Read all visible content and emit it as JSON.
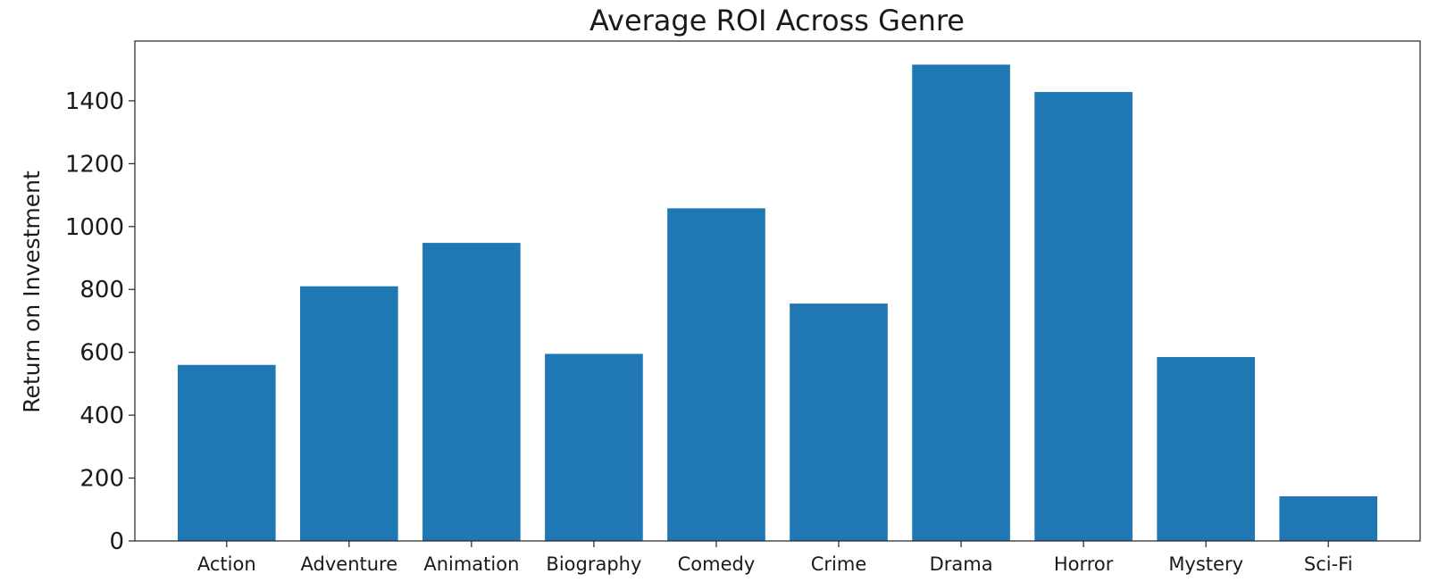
{
  "chart_data": {
    "type": "bar",
    "title": "Average ROI Across Genre",
    "xlabel": "",
    "ylabel": "Return on Investment",
    "categories": [
      "Action",
      "Adventure",
      "Animation",
      "Biography",
      "Comedy",
      "Crime",
      "Drama",
      "Horror",
      "Mystery",
      "Sci-Fi"
    ],
    "values": [
      560,
      810,
      948,
      595,
      1058,
      755,
      1515,
      1428,
      585,
      142
    ],
    "ylim": [
      0,
      1590
    ],
    "yticks": [
      "0",
      "200",
      "400",
      "600",
      "800",
      "1000",
      "1200",
      "1400"
    ],
    "bar_color": "#1f77b4",
    "grid": false
  }
}
